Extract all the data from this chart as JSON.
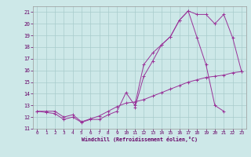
{
  "x": [
    0,
    1,
    2,
    3,
    4,
    5,
    6,
    7,
    8,
    9,
    10,
    11,
    12,
    13,
    14,
    15,
    16,
    17,
    18,
    19,
    20,
    21,
    22,
    23
  ],
  "line_upper": [
    null,
    null,
    null,
    null,
    null,
    null,
    null,
    null,
    null,
    null,
    null,
    12.8,
    15.5,
    16.8,
    18.2,
    18.9,
    20.3,
    21.1,
    20.8,
    20.8,
    20.0,
    20.8,
    18.8,
    15.9
  ],
  "line_mid": [
    12.5,
    12.4,
    12.3,
    11.8,
    12.0,
    11.55,
    11.8,
    11.8,
    12.2,
    12.5,
    14.1,
    13.0,
    16.5,
    17.5,
    18.2,
    18.9,
    20.3,
    21.1,
    18.8,
    16.5,
    13.0,
    12.5,
    null,
    null
  ],
  "line_lower": [
    12.5,
    12.5,
    12.5,
    12.0,
    12.2,
    11.6,
    11.85,
    12.1,
    12.5,
    12.9,
    13.2,
    13.3,
    13.5,
    13.8,
    14.1,
    14.4,
    14.7,
    15.0,
    15.2,
    15.4,
    15.5,
    15.6,
    15.8,
    15.9
  ],
  "bg_color": "#cde8e8",
  "line_color": "#993399",
  "grid_color": "#a8cccc",
  "xlabel": "Windchill (Refroidissement éolien,°C)",
  "ylim": [
    11,
    21.5
  ],
  "xlim": [
    -0.5,
    23.5
  ],
  "yticks": [
    11,
    12,
    13,
    14,
    15,
    16,
    17,
    18,
    19,
    20,
    21
  ],
  "xticks": [
    0,
    1,
    2,
    3,
    4,
    5,
    6,
    7,
    8,
    9,
    10,
    11,
    12,
    13,
    14,
    15,
    16,
    17,
    18,
    19,
    20,
    21,
    22,
    23
  ]
}
